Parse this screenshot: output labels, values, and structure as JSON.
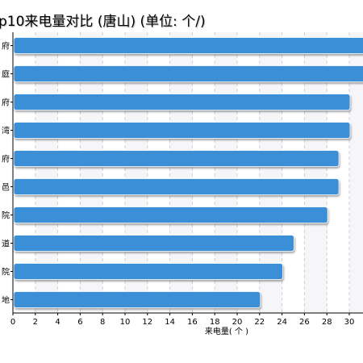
{
  "chart_data": {
    "type": "bar",
    "orientation": "horizontal",
    "title": "p10来电量对比 (唐山) (单位: 个/)",
    "xlabel": "来电量( 个 )",
    "ylabel": "",
    "categories": [
      "府",
      "庭",
      "府",
      "湾",
      "府",
      "邑",
      "院",
      "道",
      "院",
      "地"
    ],
    "values": [
      32,
      32,
      30,
      30,
      29,
      29,
      28,
      25,
      24,
      22
    ],
    "x_ticks": [
      "0",
      "2",
      "4",
      "6",
      "8",
      "10",
      "12",
      "14",
      "16",
      "18",
      "20",
      "22",
      "24",
      "26",
      "28",
      "30"
    ],
    "xlim": [
      0,
      31.2
    ],
    "grid": "vertical dashed",
    "legend": "none",
    "colors": {
      "bar": "#3a8fd6",
      "bar_shadow": "#9a9a9a",
      "band_light": "#f6f6f8",
      "grid": "#cfcfd6"
    }
  }
}
